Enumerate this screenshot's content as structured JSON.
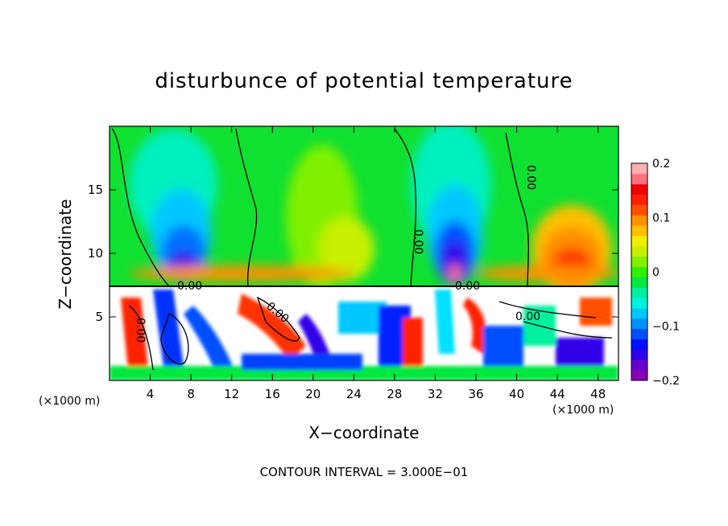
{
  "chart_data": {
    "type": "heatmap",
    "title": "disturbunce of potential temperature",
    "xlabel": "X−coordinate",
    "ylabel": "Z−coordinate",
    "x_unit": "(×1000 m)",
    "xlim": [
      0,
      50
    ],
    "ylim": [
      0,
      20
    ],
    "x_ticks": [
      4,
      8,
      12,
      16,
      20,
      24,
      28,
      32,
      36,
      40,
      44,
      48
    ],
    "x_tick_labels": [
      "4",
      "8",
      "12",
      "16",
      "20",
      "24",
      "28",
      "32",
      "36",
      "40",
      "44",
      "48"
    ],
    "y_ticks": [
      5,
      10,
      15
    ],
    "y_tick_labels": [
      "5",
      "10",
      "15"
    ],
    "colorbar": {
      "range": [
        -0.2,
        0.2
      ],
      "ticks": [
        -0.2,
        -0.1,
        0,
        0.1,
        0.2
      ],
      "tick_labels": [
        "−0.2",
        "−0.1",
        "0",
        "0.1",
        "0.2"
      ],
      "colors": [
        "#8800b8",
        "#6a00d0",
        "#3000e8",
        "#0010ff",
        "#0050ff",
        "#0090ff",
        "#00c8ff",
        "#00f0e0",
        "#00f0a0",
        "#00e840",
        "#30f000",
        "#80f000",
        "#c8f000",
        "#f0f000",
        "#ffc000",
        "#ff9000",
        "#ff5000",
        "#ff2000",
        "#f00000",
        "#ff7080",
        "#ffb0b0"
      ]
    },
    "contour_label": "0.00",
    "contour_interval_text": "CONTOUR INTERVAL = 3.000E−01",
    "colors": {
      "background": "#00e040",
      "lower_region": "#ffffff"
    }
  }
}
